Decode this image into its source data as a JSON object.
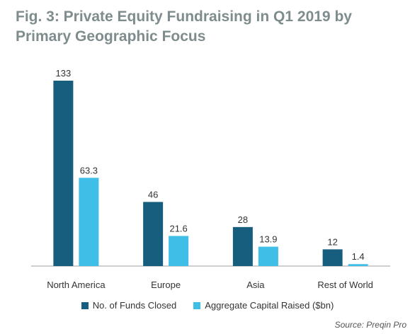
{
  "title": "Fig. 3: Private Equity Fundraising in Q1 2019 by Primary Geographic Focus",
  "source": "Source: Preqin Pro",
  "colors": {
    "funds": "#175e7e",
    "capital": "#3fbfe8",
    "axis": "#9e9e9e"
  },
  "chart_data": {
    "type": "bar",
    "categories": [
      "North America",
      "Europe",
      "Asia",
      "Rest of World"
    ],
    "series": [
      {
        "name": "No. of Funds Closed",
        "values": [
          133,
          46,
          28,
          12
        ],
        "labels": [
          "133",
          "46",
          "28",
          "12"
        ]
      },
      {
        "name": "Aggregate Capital Raised ($bn)",
        "values": [
          63.3,
          21.6,
          13.9,
          1.4
        ],
        "labels": [
          "63.3",
          "21.6",
          "13.9",
          "1.4"
        ]
      }
    ],
    "ylim": [
      0,
      133
    ],
    "grid": false,
    "legend": "bottom"
  }
}
